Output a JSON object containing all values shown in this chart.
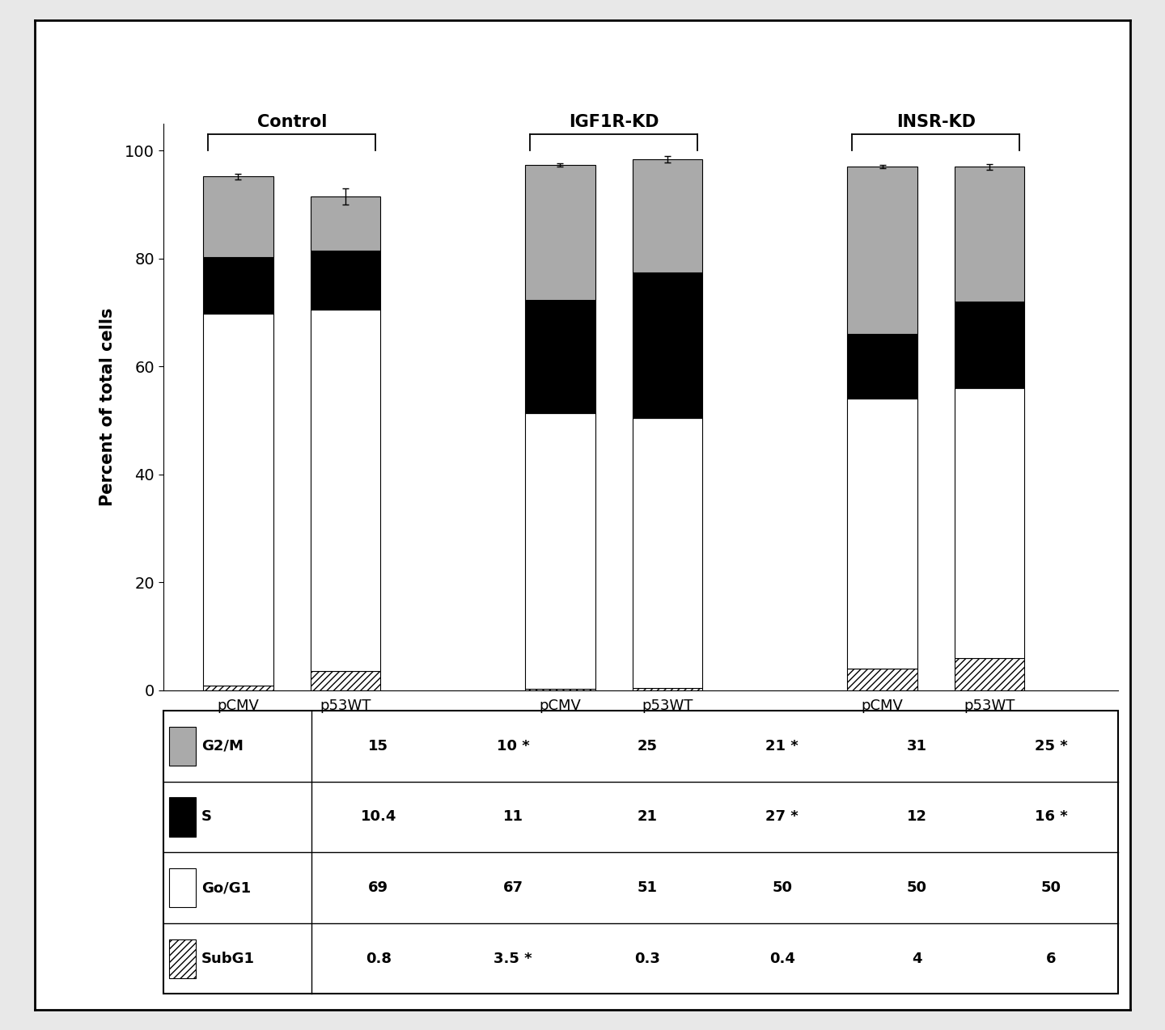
{
  "bars": {
    "Control_pCMV": {
      "SubG1": 0.8,
      "GoG1": 69,
      "S": 10.4,
      "G2M": 15
    },
    "Control_p53WT": {
      "SubG1": 3.5,
      "GoG1": 67,
      "S": 11,
      "G2M": 10
    },
    "IGF1R_pCMV": {
      "SubG1": 0.3,
      "GoG1": 51,
      "S": 21,
      "G2M": 25
    },
    "IGF1R_p53WT": {
      "SubG1": 0.4,
      "GoG1": 50,
      "S": 27,
      "G2M": 21
    },
    "INSR_pCMV": {
      "SubG1": 4,
      "GoG1": 50,
      "S": 12,
      "G2M": 31
    },
    "INSR_p53WT": {
      "SubG1": 6,
      "GoG1": 50,
      "S": 16,
      "G2M": 25
    }
  },
  "error_bars": {
    "Control_pCMV": {
      "total": 0.5
    },
    "Control_p53WT": {
      "total": 1.5
    },
    "IGF1R_pCMV": {
      "total": 0.3
    },
    "IGF1R_p53WT": {
      "total": 0.6
    },
    "INSR_pCMV": {
      "total": 0.3
    },
    "INSR_p53WT": {
      "total": 0.5
    }
  },
  "bar_positions": [
    1,
    2,
    4,
    5,
    7,
    8
  ],
  "bar_labels": [
    "pCMV",
    "p53WT",
    "pCMV",
    "p53WT",
    "pCMV",
    "p53WT"
  ],
  "group_labels": [
    "Control",
    "IGF1R-KD",
    "INSR-KD"
  ],
  "group_centers": [
    1.5,
    4.5,
    7.5
  ],
  "hatch_pattern": "////",
  "bar_width": 0.65,
  "ylabel": "Percent of total cells",
  "ylim": [
    0,
    105
  ],
  "yticks": [
    0,
    20,
    40,
    60,
    80,
    100
  ],
  "table_data": {
    "rows": [
      "G2/M",
      "S",
      "Go/G1",
      "SubG1"
    ],
    "row_colors": [
      "gray",
      "black",
      "white",
      "hatch"
    ],
    "values": [
      [
        "15",
        "10 *",
        "25",
        "21 *",
        "31",
        "25 *"
      ],
      [
        "10.4",
        "11",
        "21",
        "27 *",
        "12",
        "16 *"
      ],
      [
        "69",
        "67",
        "51",
        "50",
        "50",
        "50"
      ],
      [
        "0.8",
        "3.5 *",
        "0.3",
        "0.4",
        "4",
        "6"
      ]
    ]
  },
  "background_color": "#ffffff"
}
